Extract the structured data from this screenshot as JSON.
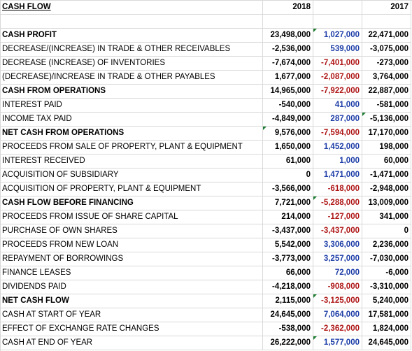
{
  "sheet": {
    "header": {
      "label": "CASH FLOW",
      "col1": "2018",
      "col2": "",
      "col3": "2017"
    },
    "rows": [
      {
        "label": "",
        "v1": "",
        "v2": "",
        "v3": "",
        "v2color": ""
      },
      {
        "label": "CASH PROFIT",
        "v1": "23,498,000",
        "v2": "1,027,000",
        "v3": "22,471,000",
        "v2color": "#1f3fa8",
        "mark": "v2"
      },
      {
        "label": "DECREASE/(INCREASE) IN TRADE & OTHER RECEIVABLES",
        "v1": "-2,536,000",
        "v2": "539,000",
        "v3": "-3,075,000",
        "v2color": "#1f3fa8"
      },
      {
        "label": "DECREASE (INCREASE) OF INVENTORIES",
        "v1": "-7,674,000",
        "v2": "-7,401,000",
        "v3": "-273,000",
        "v2color": "#b01818"
      },
      {
        "label": "(DECREASE)/INCREASE IN TRADE & OTHER PAYABLES",
        "v1": "1,677,000",
        "v2": "-2,087,000",
        "v3": "3,764,000",
        "v2color": "#b01818"
      },
      {
        "label": "CASH FROM OPERATIONS",
        "v1": "14,965,000",
        "v2": "-7,922,000",
        "v3": "22,887,000",
        "v2color": "#b01818"
      },
      {
        "label": "INTEREST PAID",
        "v1": "-540,000",
        "v2": "41,000",
        "v3": "-581,000",
        "v2color": "#1f3fa8"
      },
      {
        "label": "INCOME TAX PAID",
        "v1": "-4,849,000",
        "v2": "287,000",
        "v3": "-5,136,000",
        "v2color": "#1f3fa8",
        "mark": "v3"
      },
      {
        "label": "NET CASH FROM OPERATIONS",
        "v1": "9,576,000",
        "v2": "-7,594,000",
        "v3": "17,170,000",
        "v2color": "#b01818",
        "mark": "v1"
      },
      {
        "label": "PROCEEDS FROM SALE OF PROPERTY, PLANT & EQUIPMENT",
        "v1": "1,650,000",
        "v2": "1,452,000",
        "v3": "198,000",
        "v2color": "#1f3fa8"
      },
      {
        "label": "INTEREST RECEIVED",
        "v1": "61,000",
        "v2": "1,000",
        "v3": "60,000",
        "v2color": "#1f3fa8"
      },
      {
        "label": "ACQUISITION OF SUBSIDIARY",
        "v1": "0",
        "v2": "1,471,000",
        "v3": "-1,471,000",
        "v2color": "#1f3fa8"
      },
      {
        "label": "ACQUISITION OF PROPERTY, PLANT & EQUIPMENT",
        "v1": "-3,566,000",
        "v2": "-618,000",
        "v3": "-2,948,000",
        "v2color": "#b01818"
      },
      {
        "label": "CASH FLOW BEFORE FINANCING",
        "v1": "7,721,000",
        "v2": "-5,288,000",
        "v3": "13,009,000",
        "v2color": "#b01818",
        "mark": "v2"
      },
      {
        "label": "PROCEEDS FROM ISSUE OF SHARE CAPITAL",
        "v1": "214,000",
        "v2": "-127,000",
        "v3": "341,000",
        "v2color": "#b01818"
      },
      {
        "label": "PURCHASE OF OWN SHARES",
        "v1": "-3,437,000",
        "v2": "-3,437,000",
        "v3": "0",
        "v2color": "#b01818"
      },
      {
        "label": "PROCEEDS FROM NEW LOAN",
        "v1": "5,542,000",
        "v2": "3,306,000",
        "v3": "2,236,000",
        "v2color": "#1f3fa8"
      },
      {
        "label": "REPAYMENT OF BORROWINGS",
        "v1": "-3,773,000",
        "v2": "3,257,000",
        "v3": "-7,030,000",
        "v2color": "#1f3fa8"
      },
      {
        "label": "FINANCE LEASES",
        "v1": "66,000",
        "v2": "72,000",
        "v3": "-6,000",
        "v2color": "#1f3fa8"
      },
      {
        "label": "DIVIDENDS PAID",
        "v1": "-4,218,000",
        "v2": "-908,000",
        "v3": "-3,310,000",
        "v2color": "#b01818"
      },
      {
        "label": "NET CASH FLOW",
        "v1": "2,115,000",
        "v2": "-3,125,000",
        "v3": "5,240,000",
        "v2color": "#b01818",
        "mark": "v2"
      },
      {
        "label": "CASH AT START OF YEAR",
        "v1": "24,645,000",
        "v2": "7,064,000",
        "v3": "17,581,000",
        "v2color": "#1f3fa8"
      },
      {
        "label": "EFFECT OF EXCHANGE RATE CHANGES",
        "v1": "-538,000",
        "v2": "-2,362,000",
        "v3": "1,824,000",
        "v2color": "#b01818"
      },
      {
        "label": "CASH AT END OF YEAR",
        "v1": "26,222,000",
        "v2": "1,577,000",
        "v3": "24,645,000",
        "v2color": "#1f3fa8",
        "mark": "v2"
      }
    ]
  },
  "colors": {
    "positive_change": "#1f3fa8",
    "negative_change": "#b01818",
    "error_indicator": "#1e7d32",
    "gridline": "#d9d9d9"
  }
}
